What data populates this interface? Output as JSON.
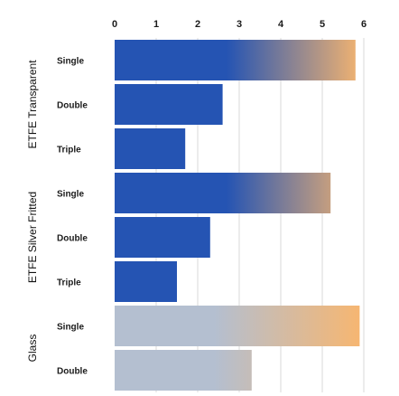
{
  "chart_data": {
    "type": "bar",
    "orientation": "horizontal",
    "title": "",
    "xlabel": "",
    "ylabel": "",
    "xlim": [
      0,
      6
    ],
    "x_ticks": [
      "0",
      "1",
      "2",
      "3",
      "4",
      "5",
      "6"
    ],
    "grid": true,
    "legend": "none",
    "groups": [
      {
        "label": "ETFE Transparent",
        "colors": {
          "start": "#2554b3",
          "end": "#f8b66f"
        },
        "bars": [
          {
            "category": "Single",
            "value": 5.8
          },
          {
            "category": "Double",
            "value": 2.6
          },
          {
            "category": "Triple",
            "value": 1.7
          }
        ]
      },
      {
        "label": "ETFE Silver Fritted",
        "colors": {
          "start": "#2554b3",
          "end": "#f8b66f"
        },
        "bars": [
          {
            "category": "Single",
            "value": 5.2
          },
          {
            "category": "Double",
            "value": 2.3
          },
          {
            "category": "Triple",
            "value": 1.5
          }
        ]
      },
      {
        "label": "Glass",
        "colors": {
          "start": "#b4bfd0",
          "end": "#f8b66f"
        },
        "bars": [
          {
            "category": "Single",
            "value": 5.9
          },
          {
            "category": "Double",
            "value": 3.3
          }
        ]
      }
    ]
  }
}
